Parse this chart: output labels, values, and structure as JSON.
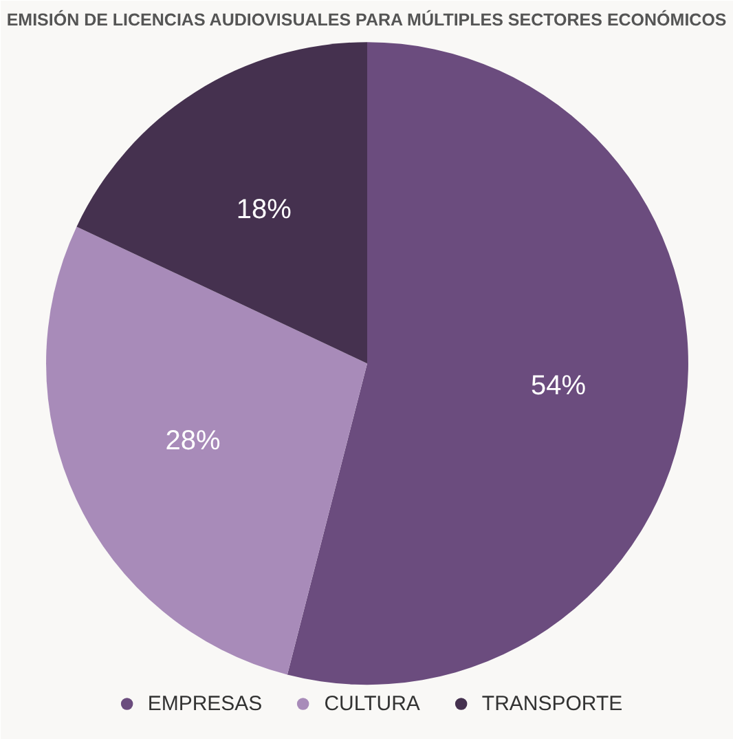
{
  "chart_data": {
    "type": "pie",
    "title": "EMISIÓN DE LICENCIAS AUDIOVISUALES PARA MÚLTIPLES SECTORES ECONÓMICOS",
    "categories": [
      "EMPRESAS",
      "CULTURA",
      "TRANSPORTE"
    ],
    "values": [
      54,
      28,
      18
    ],
    "colors": [
      "#6b4c7e",
      "#a88bb9",
      "#45314f"
    ],
    "value_labels": [
      "54%",
      "28%",
      "18%"
    ],
    "legend": "bottom"
  }
}
